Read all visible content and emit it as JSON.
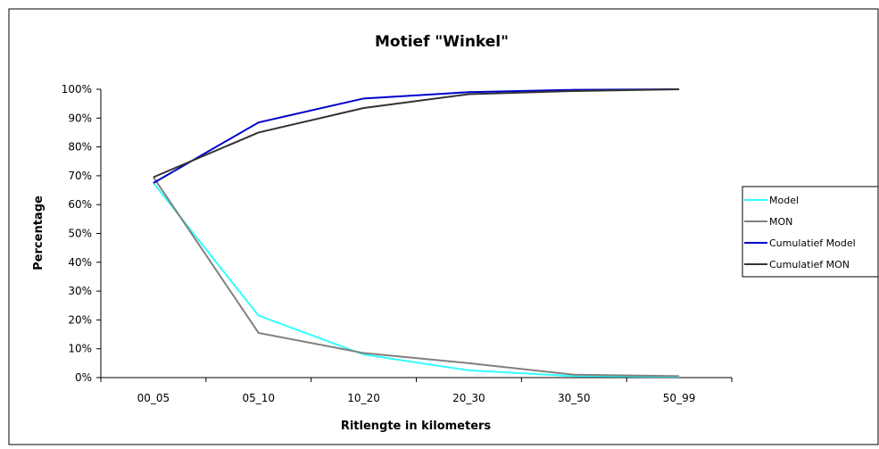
{
  "chart_data": {
    "type": "line",
    "title": "Motief \"Winkel\"",
    "xlabel": "Ritlengte in kilometers",
    "ylabel": "Percentage",
    "categories": [
      "00_05",
      "05_10",
      "10_20",
      "20_30",
      "30_50",
      "50_99"
    ],
    "ylim": [
      0,
      100
    ],
    "yticks": [
      "0%",
      "10%",
      "20%",
      "30%",
      "40%",
      "50%",
      "60%",
      "70%",
      "80%",
      "90%",
      "100%"
    ],
    "grid": false,
    "legend": "right",
    "series": [
      {
        "name": "Model",
        "color": "#33FFFF",
        "values": [
          67.5,
          21.5,
          8.0,
          2.5,
          0.5,
          0.3
        ]
      },
      {
        "name": "MON",
        "color": "#808080",
        "values": [
          69.5,
          15.5,
          8.5,
          5.0,
          1.0,
          0.5
        ]
      },
      {
        "name": "Cumulatief Model",
        "color": "#0000CC",
        "values": [
          67.5,
          88.5,
          96.8,
          99.0,
          99.8,
          100
        ]
      },
      {
        "name": "Cumulatief MON",
        "color": "#333333",
        "values": [
          69.5,
          85.0,
          93.5,
          98.3,
          99.4,
          100
        ]
      }
    ]
  }
}
